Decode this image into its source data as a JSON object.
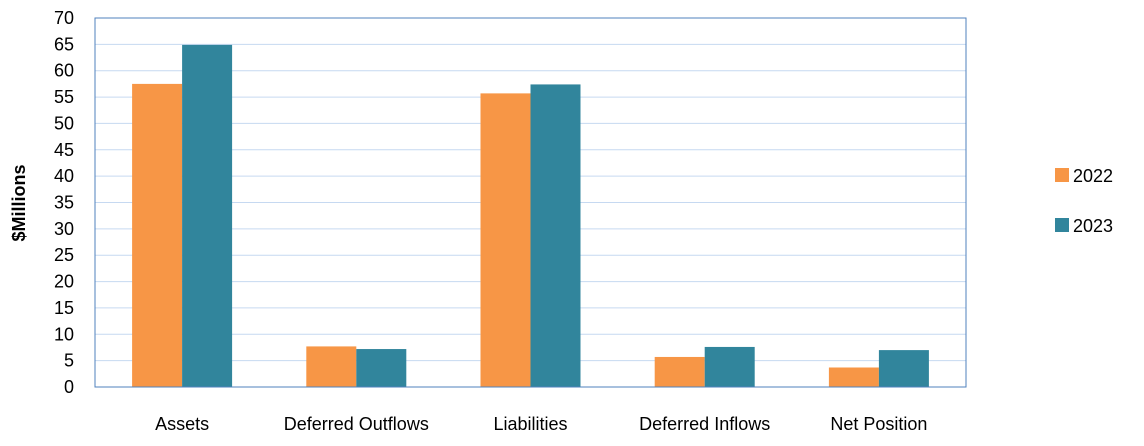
{
  "chart_data": {
    "type": "bar",
    "categories": [
      "Assets",
      "Deferred Outflows",
      "Liabilities",
      "Deferred Inflows",
      "Net Position"
    ],
    "series": [
      {
        "name": "2022",
        "values": [
          57.5,
          7.7,
          55.7,
          5.7,
          3.7
        ],
        "color": "#F79646"
      },
      {
        "name": "2023",
        "values": [
          64.9,
          7.2,
          57.4,
          7.6,
          7.0
        ],
        "color": "#31859C"
      }
    ],
    "ylabel": "$Millions",
    "xlabel": "",
    "ylim": [
      0,
      70
    ],
    "yticks": [
      0,
      5,
      10,
      15,
      20,
      25,
      30,
      35,
      40,
      45,
      50,
      55,
      60,
      65,
      70
    ],
    "grid": true,
    "legend_position": "right"
  }
}
